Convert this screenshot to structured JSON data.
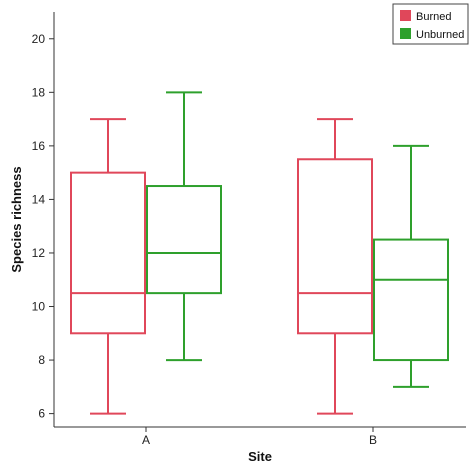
{
  "chart_data": {
    "type": "box",
    "xlabel": "Site",
    "ylabel": "Species richness",
    "ylim": [
      5.5,
      21
    ],
    "yticks": [
      6,
      8,
      10,
      12,
      14,
      16,
      18,
      20
    ],
    "categories": [
      "A",
      "B"
    ],
    "legend_position": "top-right",
    "series": [
      {
        "name": "Burned",
        "color": "#e0475a",
        "boxes": [
          {
            "category": "A",
            "min": 6,
            "q1": 9,
            "median": 10.5,
            "q3": 15,
            "max": 17
          },
          {
            "category": "B",
            "min": 6,
            "q1": 9,
            "median": 10.5,
            "q3": 15.5,
            "max": 17
          }
        ]
      },
      {
        "name": "Unburned",
        "color": "#2ea02c",
        "boxes": [
          {
            "category": "A",
            "min": 8,
            "q1": 10.5,
            "median": 12,
            "q3": 14.5,
            "max": 18
          },
          {
            "category": "B",
            "min": 7,
            "q1": 8,
            "median": 11,
            "q3": 12.5,
            "max": 16
          }
        ]
      }
    ]
  }
}
